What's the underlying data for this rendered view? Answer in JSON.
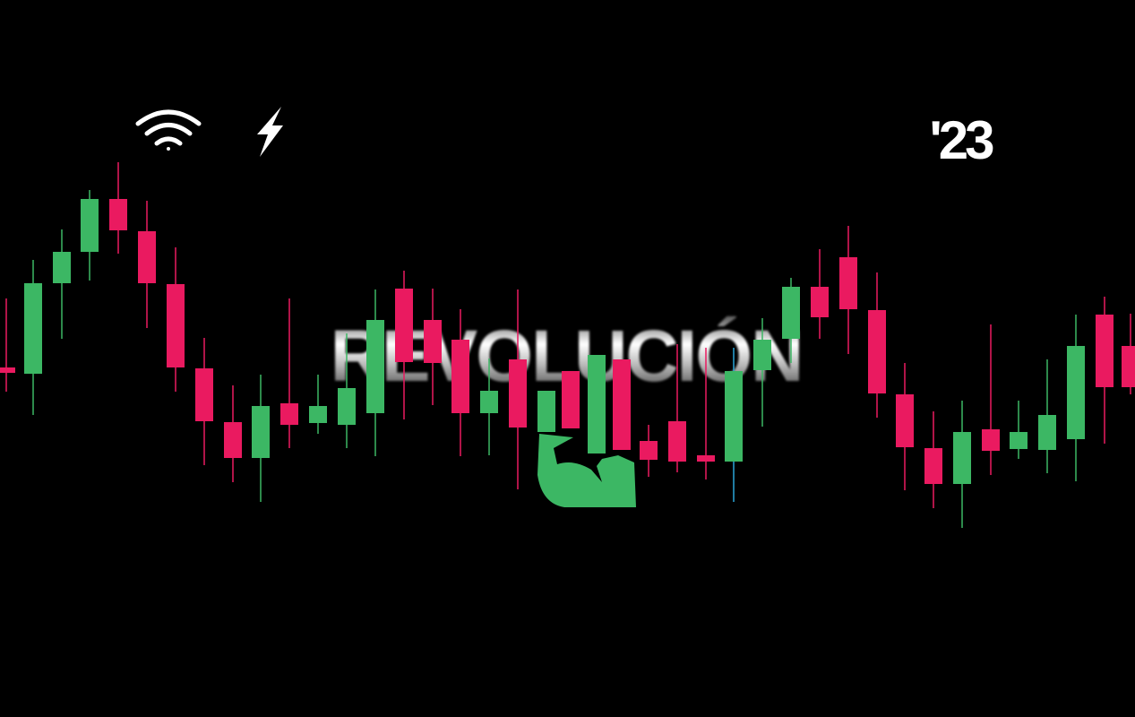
{
  "headline": "REVOLUCIÓN",
  "year": "'23"
}
